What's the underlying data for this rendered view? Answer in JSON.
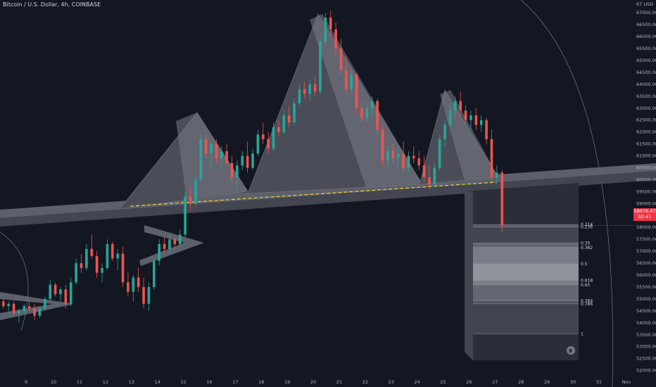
{
  "header": {
    "title": "Bitcoin / U.S. Dollar, 4h, COINBASE"
  },
  "price_tag": {
    "value": "58076.47",
    "countdown": "02:41"
  },
  "colors": {
    "up": "#26a69a",
    "down": "#ef5350",
    "bg": "#131722",
    "pattern": "#9598a1",
    "neckline": "#f7d12d"
  },
  "icon": "bitcoin-icon",
  "chart_data": {
    "type": "candlestick",
    "title": "Bitcoin / U.S. Dollar, 4h, COINBASE",
    "ylim": [
      51900,
      67300
    ],
    "y_ticks": [
      52000,
      52500,
      53000,
      53500,
      54000,
      54500,
      55000,
      55500,
      56000,
      56500,
      57000,
      57500,
      58000,
      58500,
      59000,
      59500,
      60000,
      60500,
      61000,
      61500,
      62000,
      62500,
      63000,
      63500,
      64000,
      64500,
      65000,
      65500,
      66000,
      66500,
      67000
    ],
    "y_tick_labels": [
      "52000.00",
      "52500.00",
      "53000.00",
      "53500.00",
      "54000.00",
      "54500.00",
      "55000.00",
      "55500.00",
      "56000.00",
      "56500.00",
      "57000.00",
      "57500.00",
      "58000.00",
      "58500.00",
      "59000.00",
      "59500.00",
      "60000.00",
      "60500.00",
      "61000.00",
      "61500.00",
      "62000.00",
      "62500.00",
      "63000.00",
      "63500.00",
      "64000.00",
      "64500.00",
      "65000.00",
      "65500.00",
      "66000.00",
      "66500.00",
      "67000.00"
    ],
    "y_top_label": "67 USD",
    "x_tick_labels": [
      "9",
      "10",
      "11",
      "12",
      "13",
      "14",
      "15",
      "16",
      "17",
      "18",
      "19",
      "20",
      "21",
      "22",
      "23",
      "24",
      "25",
      "26",
      "27",
      "28",
      "29",
      "30",
      "31",
      "Nov"
    ],
    "x_range": [
      8.1,
      32.5
    ],
    "last_price": 58076.47,
    "fib_levels": [
      {
        "label": "0.214",
        "price": 58121
      },
      {
        "label": "0.236",
        "price": 58016
      },
      {
        "label": "0.35",
        "price": 57347
      },
      {
        "label": "0.382",
        "price": 57158
      },
      {
        "label": "0.5",
        "price": 56470
      },
      {
        "label": "0.618",
        "price": 55781
      },
      {
        "label": "0.65",
        "price": 55592
      },
      {
        "label": "0.764",
        "price": 54924
      },
      {
        "label": "0.786",
        "price": 54795
      },
      {
        "label": "1",
        "price": 53541
      }
    ],
    "candles": [
      [
        8.1,
        54900,
        55000,
        54600,
        54700
      ],
      [
        8.3,
        54700,
        54900,
        54400,
        54800
      ],
      [
        8.5,
        54800,
        54900,
        54300,
        54400
      ],
      [
        8.7,
        54400,
        54600,
        54000,
        54500
      ],
      [
        8.9,
        54500,
        54800,
        54400,
        54700
      ],
      [
        9.1,
        54700,
        54900,
        54500,
        54600
      ],
      [
        9.3,
        54600,
        54800,
        54100,
        54300
      ],
      [
        9.5,
        54300,
        54700,
        54200,
        54600
      ],
      [
        9.7,
        54600,
        55100,
        54500,
        55000
      ],
      [
        9.9,
        55000,
        55800,
        54900,
        55600
      ],
      [
        10.1,
        55600,
        55700,
        55100,
        55200
      ],
      [
        10.3,
        55200,
        55500,
        54900,
        55400
      ],
      [
        10.5,
        55400,
        55600,
        54600,
        54800
      ],
      [
        10.7,
        54800,
        55900,
        54700,
        55700
      ],
      [
        10.9,
        55700,
        56700,
        55600,
        56500
      ],
      [
        11.1,
        56500,
        56900,
        56100,
        56300
      ],
      [
        11.3,
        56300,
        57300,
        56200,
        57100
      ],
      [
        11.5,
        57100,
        57700,
        56700,
        56800
      ],
      [
        11.7,
        56800,
        57000,
        55900,
        56100
      ],
      [
        11.9,
        56100,
        56500,
        55700,
        56300
      ],
      [
        12.1,
        56300,
        57500,
        56200,
        57300
      ],
      [
        12.3,
        57300,
        57400,
        56600,
        56700
      ],
      [
        12.5,
        56700,
        57100,
        56200,
        56900
      ],
      [
        12.7,
        56900,
        57200,
        55500,
        55700
      ],
      [
        12.9,
        55700,
        56100,
        55100,
        55300
      ],
      [
        13.1,
        55300,
        56000,
        54900,
        55900
      ],
      [
        13.3,
        55900,
        56300,
        55300,
        55500
      ],
      [
        13.5,
        55500,
        55900,
        54600,
        54800
      ],
      [
        13.7,
        54800,
        55700,
        54500,
        55500
      ],
      [
        13.9,
        55500,
        56700,
        55400,
        56600
      ],
      [
        14.1,
        56600,
        57500,
        56400,
        57300
      ],
      [
        14.3,
        57300,
        57600,
        56900,
        57100
      ],
      [
        14.5,
        57100,
        57700,
        56900,
        57500
      ],
      [
        14.7,
        57500,
        57600,
        57100,
        57300
      ],
      [
        14.9,
        57300,
        57900,
        57200,
        57700
      ],
      [
        15.1,
        57700,
        59500,
        57600,
        59300
      ],
      [
        15.3,
        59300,
        59700,
        58700,
        59000
      ],
      [
        15.5,
        59000,
        60200,
        58900,
        60000
      ],
      [
        15.7,
        60000,
        61900,
        59900,
        61700
      ],
      [
        15.9,
        61700,
        61900,
        60900,
        61100
      ],
      [
        16.1,
        61100,
        61600,
        60400,
        61500
      ],
      [
        16.3,
        61500,
        61700,
        60700,
        60900
      ],
      [
        16.5,
        60900,
        61400,
        60500,
        61200
      ],
      [
        16.7,
        61200,
        61500,
        60600,
        60700
      ],
      [
        16.9,
        60700,
        61000,
        59900,
        60100
      ],
      [
        17.1,
        60100,
        60800,
        59600,
        60600
      ],
      [
        17.3,
        60600,
        61200,
        60400,
        61000
      ],
      [
        17.5,
        61000,
        61600,
        60300,
        60500
      ],
      [
        17.7,
        60500,
        61300,
        60400,
        61100
      ],
      [
        17.9,
        61100,
        62100,
        61000,
        61900
      ],
      [
        18.1,
        61900,
        62400,
        61500,
        61700
      ],
      [
        18.3,
        61700,
        62000,
        61100,
        61300
      ],
      [
        18.5,
        61300,
        62400,
        61200,
        62200
      ],
      [
        18.7,
        62200,
        62500,
        61800,
        62000
      ],
      [
        18.9,
        62000,
        62900,
        61900,
        62700
      ],
      [
        19.1,
        62700,
        63100,
        62200,
        62400
      ],
      [
        19.3,
        62400,
        63400,
        62300,
        63200
      ],
      [
        19.5,
        63200,
        64000,
        63100,
        63800
      ],
      [
        19.7,
        63800,
        64100,
        63400,
        63600
      ],
      [
        19.9,
        63600,
        64200,
        63300,
        64000
      ],
      [
        20.1,
        64000,
        64300,
        63500,
        63700
      ],
      [
        20.3,
        63700,
        66000,
        63600,
        65800
      ],
      [
        20.5,
        65800,
        67000,
        65600,
        66800
      ],
      [
        20.7,
        66800,
        67100,
        66000,
        66300
      ],
      [
        20.9,
        66300,
        66600,
        65200,
        65500
      ],
      [
        21.1,
        65500,
        65900,
        64400,
        64600
      ],
      [
        21.3,
        64600,
        65200,
        63600,
        63800
      ],
      [
        21.5,
        63800,
        64600,
        63600,
        64400
      ],
      [
        21.7,
        64400,
        64500,
        62800,
        63000
      ],
      [
        21.9,
        63000,
        63300,
        62400,
        62600
      ],
      [
        22.1,
        62600,
        63200,
        62400,
        63000
      ],
      [
        22.3,
        63000,
        63500,
        62700,
        63300
      ],
      [
        22.5,
        63300,
        63400,
        61900,
        62100
      ],
      [
        22.7,
        62100,
        62300,
        60600,
        60800
      ],
      [
        22.9,
        60800,
        61400,
        60500,
        61200
      ],
      [
        23.1,
        61200,
        61500,
        60700,
        60900
      ],
      [
        23.3,
        60900,
        61300,
        60500,
        61100
      ],
      [
        23.5,
        61100,
        61600,
        60300,
        60500
      ],
      [
        23.7,
        60500,
        61200,
        60300,
        61000
      ],
      [
        23.9,
        61000,
        61400,
        60700,
        60900
      ],
      [
        24.1,
        60900,
        61200,
        60400,
        60600
      ],
      [
        24.3,
        60600,
        61000,
        59900,
        60100
      ],
      [
        24.5,
        60100,
        60600,
        59600,
        59800
      ],
      [
        24.7,
        59800,
        60700,
        59700,
        60500
      ],
      [
        24.9,
        60500,
        61900,
        60400,
        61700
      ],
      [
        25.1,
        61700,
        62500,
        61400,
        62300
      ],
      [
        25.3,
        62300,
        63100,
        62200,
        62900
      ],
      [
        25.5,
        62900,
        63500,
        62600,
        63300
      ],
      [
        25.7,
        63300,
        63700,
        62700,
        62900
      ],
      [
        25.9,
        62900,
        63100,
        62300,
        62500
      ],
      [
        26.1,
        62500,
        62900,
        62100,
        62700
      ],
      [
        26.3,
        62700,
        63000,
        62100,
        62300
      ],
      [
        26.5,
        62300,
        62700,
        62000,
        62500
      ],
      [
        26.7,
        62500,
        62600,
        61500,
        61700
      ],
      [
        26.9,
        61700,
        62100,
        59900,
        60100
      ],
      [
        27.1,
        60100,
        60600,
        59800,
        60300
      ],
      [
        27.3,
        60300,
        60400,
        57800,
        58076
      ]
    ]
  }
}
